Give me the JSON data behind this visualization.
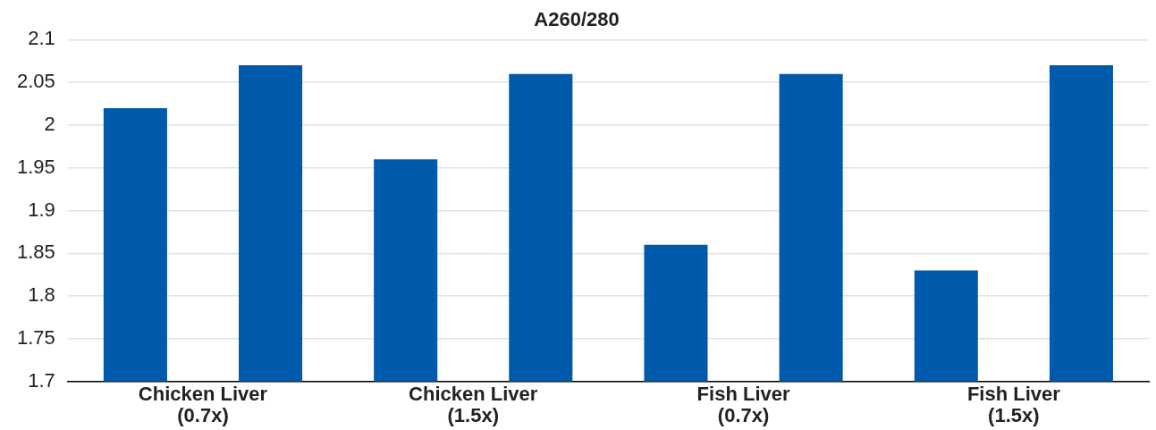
{
  "chart_data": {
    "type": "bar",
    "title": "A260/280",
    "categories": [
      "Chicken Liver\n(0.7x)",
      "Chicken Liver\n(1.5x)",
      "Fish Liver\n(0.7x)",
      "Fish Liver\n(1.5x)"
    ],
    "series": [
      {
        "color": "#005aab",
        "values": [
          2.02,
          1.96,
          1.86,
          1.83
        ]
      },
      {
        "color": "#005aab",
        "values": [
          2.07,
          2.06,
          2.06,
          2.07
        ]
      }
    ],
    "ylim": [
      1.7,
      2.1
    ],
    "yticks": [
      1.7,
      1.75,
      1.8,
      1.85,
      1.9,
      1.95,
      2,
      2.05,
      2.1
    ],
    "grid": "y"
  }
}
